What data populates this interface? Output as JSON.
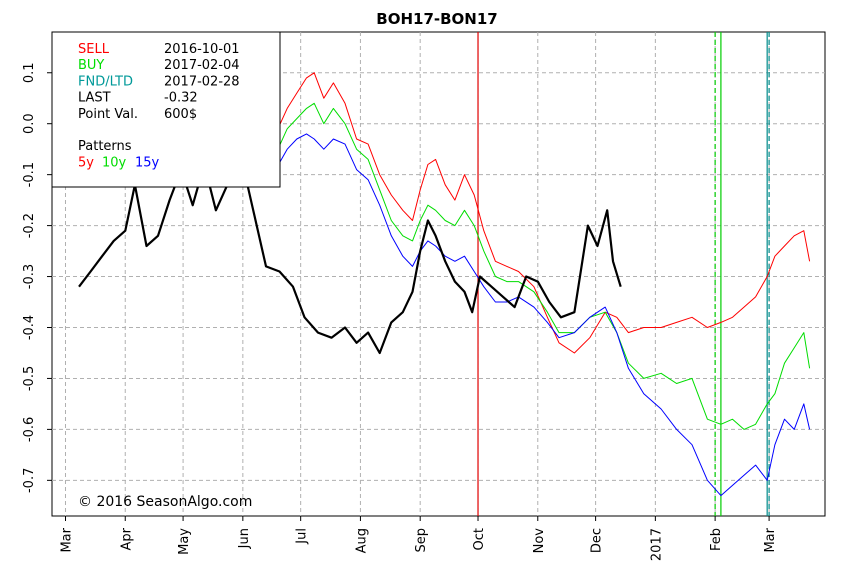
{
  "chart_data": {
    "type": "line",
    "title": "BOH17-BON17",
    "ylim": [
      -0.77,
      0.18
    ],
    "y_ticks": [
      -0.7,
      -0.6,
      -0.5,
      -0.4,
      -0.3,
      -0.2,
      -0.1,
      0.0,
      0.1
    ],
    "y_tick_labels": [
      "-0.7",
      "-0.6",
      "-0.5",
      "-0.4",
      "-0.3",
      "-0.2",
      "-0.1",
      "0.0",
      "0.1"
    ],
    "x_range": [
      "2016-02-23",
      "2017-03-30"
    ],
    "x_ticks": [
      {
        "label": "Mar",
        "date": "2016-03-01"
      },
      {
        "label": "Apr",
        "date": "2016-04-01"
      },
      {
        "label": "May",
        "date": "2016-05-01"
      },
      {
        "label": "Jun",
        "date": "2016-06-01"
      },
      {
        "label": "Jul",
        "date": "2016-07-01"
      },
      {
        "label": "Aug",
        "date": "2016-08-01"
      },
      {
        "label": "Sep",
        "date": "2016-09-01"
      },
      {
        "label": "Oct",
        "date": "2016-10-01"
      },
      {
        "label": "Nov",
        "date": "2016-11-01"
      },
      {
        "label": "Dec",
        "date": "2016-12-01"
      },
      {
        "label": "2017",
        "date": "2017-01-01"
      },
      {
        "label": "Feb",
        "date": "2017-02-01"
      },
      {
        "label": "Mar",
        "date": "2017-03-01"
      }
    ],
    "grid": true,
    "vlines": [
      {
        "date": "2016-10-01",
        "color": "#e00000",
        "style": "solid"
      },
      {
        "date": "2017-02-04",
        "color": "#00cc00",
        "style": "solid"
      },
      {
        "date": "2017-02-01",
        "color": "#00cc00",
        "style": "dashed"
      },
      {
        "date": "2017-02-28",
        "color": "#008b8b",
        "style": "solid"
      },
      {
        "date": "2017-03-01",
        "color": "#008b8b",
        "style": "dashed"
      }
    ],
    "series": [
      {
        "name": "5y",
        "color": "#ff0000",
        "width": 1,
        "points": [
          [
            "2016-06-10",
            -0.08
          ],
          [
            "2016-06-18",
            -0.02
          ],
          [
            "2016-06-24",
            0.03
          ],
          [
            "2016-06-29",
            0.06
          ],
          [
            "2016-07-04",
            0.09
          ],
          [
            "2016-07-08",
            0.1
          ],
          [
            "2016-07-13",
            0.05
          ],
          [
            "2016-07-18",
            0.08
          ],
          [
            "2016-07-24",
            0.04
          ],
          [
            "2016-07-30",
            -0.03
          ],
          [
            "2016-08-05",
            -0.04
          ],
          [
            "2016-08-11",
            -0.1
          ],
          [
            "2016-08-17",
            -0.14
          ],
          [
            "2016-08-23",
            -0.17
          ],
          [
            "2016-08-28",
            -0.19
          ],
          [
            "2016-09-01",
            -0.13
          ],
          [
            "2016-09-05",
            -0.08
          ],
          [
            "2016-09-09",
            -0.07
          ],
          [
            "2016-09-14",
            -0.12
          ],
          [
            "2016-09-19",
            -0.15
          ],
          [
            "2016-09-24",
            -0.1
          ],
          [
            "2016-09-29",
            -0.14
          ],
          [
            "2016-10-04",
            -0.21
          ],
          [
            "2016-10-10",
            -0.27
          ],
          [
            "2016-10-16",
            -0.28
          ],
          [
            "2016-10-22",
            -0.29
          ],
          [
            "2016-10-30",
            -0.32
          ],
          [
            "2016-11-06",
            -0.38
          ],
          [
            "2016-11-12",
            -0.43
          ],
          [
            "2016-11-20",
            -0.45
          ],
          [
            "2016-11-28",
            -0.42
          ],
          [
            "2016-12-06",
            -0.37
          ],
          [
            "2016-12-12",
            -0.38
          ],
          [
            "2016-12-18",
            -0.41
          ],
          [
            "2016-12-26",
            -0.4
          ],
          [
            "2017-01-04",
            -0.4
          ],
          [
            "2017-01-12",
            -0.39
          ],
          [
            "2017-01-20",
            -0.38
          ],
          [
            "2017-01-28",
            -0.4
          ],
          [
            "2017-02-04",
            -0.39
          ],
          [
            "2017-02-10",
            -0.38
          ],
          [
            "2017-02-16",
            -0.36
          ],
          [
            "2017-02-22",
            -0.34
          ],
          [
            "2017-02-28",
            -0.3
          ],
          [
            "2017-03-04",
            -0.26
          ],
          [
            "2017-03-09",
            -0.24
          ],
          [
            "2017-03-14",
            -0.22
          ],
          [
            "2017-03-19",
            -0.21
          ],
          [
            "2017-03-22",
            -0.27
          ]
        ]
      },
      {
        "name": "10y",
        "color": "#00dd00",
        "width": 1,
        "points": [
          [
            "2016-06-10",
            -0.1
          ],
          [
            "2016-06-18",
            -0.06
          ],
          [
            "2016-06-24",
            -0.01
          ],
          [
            "2016-06-29",
            0.01
          ],
          [
            "2016-07-04",
            0.03
          ],
          [
            "2016-07-08",
            0.04
          ],
          [
            "2016-07-13",
            0.0
          ],
          [
            "2016-07-18",
            0.03
          ],
          [
            "2016-07-24",
            0.0
          ],
          [
            "2016-07-30",
            -0.05
          ],
          [
            "2016-08-05",
            -0.07
          ],
          [
            "2016-08-11",
            -0.13
          ],
          [
            "2016-08-17",
            -0.19
          ],
          [
            "2016-08-23",
            -0.22
          ],
          [
            "2016-08-28",
            -0.23
          ],
          [
            "2016-09-01",
            -0.19
          ],
          [
            "2016-09-05",
            -0.16
          ],
          [
            "2016-09-09",
            -0.17
          ],
          [
            "2016-09-14",
            -0.19
          ],
          [
            "2016-09-19",
            -0.2
          ],
          [
            "2016-09-24",
            -0.17
          ],
          [
            "2016-09-29",
            -0.2
          ],
          [
            "2016-10-04",
            -0.25
          ],
          [
            "2016-10-10",
            -0.3
          ],
          [
            "2016-10-16",
            -0.31
          ],
          [
            "2016-10-22",
            -0.31
          ],
          [
            "2016-10-30",
            -0.33
          ],
          [
            "2016-11-06",
            -0.37
          ],
          [
            "2016-11-12",
            -0.41
          ],
          [
            "2016-11-20",
            -0.41
          ],
          [
            "2016-11-28",
            -0.38
          ],
          [
            "2016-12-06",
            -0.37
          ],
          [
            "2016-12-12",
            -0.41
          ],
          [
            "2016-12-18",
            -0.47
          ],
          [
            "2016-12-26",
            -0.5
          ],
          [
            "2017-01-04",
            -0.49
          ],
          [
            "2017-01-12",
            -0.51
          ],
          [
            "2017-01-20",
            -0.5
          ],
          [
            "2017-01-28",
            -0.58
          ],
          [
            "2017-02-04",
            -0.59
          ],
          [
            "2017-02-10",
            -0.58
          ],
          [
            "2017-02-16",
            -0.6
          ],
          [
            "2017-02-22",
            -0.59
          ],
          [
            "2017-02-28",
            -0.55
          ],
          [
            "2017-03-04",
            -0.53
          ],
          [
            "2017-03-09",
            -0.47
          ],
          [
            "2017-03-14",
            -0.44
          ],
          [
            "2017-03-19",
            -0.41
          ],
          [
            "2017-03-22",
            -0.48
          ]
        ]
      },
      {
        "name": "15y",
        "color": "#0000ff",
        "width": 1,
        "points": [
          [
            "2016-06-10",
            -0.12
          ],
          [
            "2016-06-18",
            -0.09
          ],
          [
            "2016-06-24",
            -0.05
          ],
          [
            "2016-06-29",
            -0.03
          ],
          [
            "2016-07-04",
            -0.02
          ],
          [
            "2016-07-08",
            -0.03
          ],
          [
            "2016-07-13",
            -0.05
          ],
          [
            "2016-07-18",
            -0.03
          ],
          [
            "2016-07-24",
            -0.04
          ],
          [
            "2016-07-30",
            -0.09
          ],
          [
            "2016-08-05",
            -0.11
          ],
          [
            "2016-08-11",
            -0.16
          ],
          [
            "2016-08-17",
            -0.22
          ],
          [
            "2016-08-23",
            -0.26
          ],
          [
            "2016-08-28",
            -0.28
          ],
          [
            "2016-09-01",
            -0.25
          ],
          [
            "2016-09-05",
            -0.23
          ],
          [
            "2016-09-09",
            -0.24
          ],
          [
            "2016-09-14",
            -0.26
          ],
          [
            "2016-09-19",
            -0.27
          ],
          [
            "2016-09-24",
            -0.26
          ],
          [
            "2016-09-29",
            -0.29
          ],
          [
            "2016-10-04",
            -0.32
          ],
          [
            "2016-10-10",
            -0.35
          ],
          [
            "2016-10-16",
            -0.35
          ],
          [
            "2016-10-22",
            -0.34
          ],
          [
            "2016-10-30",
            -0.36
          ],
          [
            "2016-11-06",
            -0.39
          ],
          [
            "2016-11-12",
            -0.42
          ],
          [
            "2016-11-20",
            -0.41
          ],
          [
            "2016-11-28",
            -0.38
          ],
          [
            "2016-12-06",
            -0.36
          ],
          [
            "2016-12-12",
            -0.41
          ],
          [
            "2016-12-18",
            -0.48
          ],
          [
            "2016-12-26",
            -0.53
          ],
          [
            "2017-01-04",
            -0.56
          ],
          [
            "2017-01-12",
            -0.6
          ],
          [
            "2017-01-20",
            -0.63
          ],
          [
            "2017-01-28",
            -0.7
          ],
          [
            "2017-02-04",
            -0.73
          ],
          [
            "2017-02-10",
            -0.71
          ],
          [
            "2017-02-16",
            -0.69
          ],
          [
            "2017-02-22",
            -0.67
          ],
          [
            "2017-02-28",
            -0.7
          ],
          [
            "2017-03-04",
            -0.63
          ],
          [
            "2017-03-09",
            -0.58
          ],
          [
            "2017-03-14",
            -0.6
          ],
          [
            "2017-03-19",
            -0.55
          ],
          [
            "2017-03-22",
            -0.6
          ]
        ]
      },
      {
        "name": "",
        "color": "#000000",
        "width": 2.2,
        "points": [
          [
            "2016-03-08",
            -0.32
          ],
          [
            "2016-03-14",
            -0.29
          ],
          [
            "2016-03-20",
            -0.26
          ],
          [
            "2016-03-26",
            -0.23
          ],
          [
            "2016-04-01",
            -0.21
          ],
          [
            "2016-04-06",
            -0.12
          ],
          [
            "2016-04-12",
            -0.24
          ],
          [
            "2016-04-18",
            -0.22
          ],
          [
            "2016-04-24",
            -0.15
          ],
          [
            "2016-04-30",
            -0.09
          ],
          [
            "2016-05-06",
            -0.16
          ],
          [
            "2016-05-12",
            -0.08
          ],
          [
            "2016-05-18",
            -0.17
          ],
          [
            "2016-05-24",
            -0.12
          ],
          [
            "2016-06-01",
            -0.08
          ],
          [
            "2016-06-07",
            -0.18
          ],
          [
            "2016-06-13",
            -0.28
          ],
          [
            "2016-06-20",
            -0.29
          ],
          [
            "2016-06-27",
            -0.32
          ],
          [
            "2016-07-03",
            -0.38
          ],
          [
            "2016-07-10",
            -0.41
          ],
          [
            "2016-07-17",
            -0.42
          ],
          [
            "2016-07-24",
            -0.4
          ],
          [
            "2016-07-30",
            -0.43
          ],
          [
            "2016-08-05",
            -0.41
          ],
          [
            "2016-08-11",
            -0.45
          ],
          [
            "2016-08-17",
            -0.39
          ],
          [
            "2016-08-23",
            -0.37
          ],
          [
            "2016-08-28",
            -0.33
          ],
          [
            "2016-09-01",
            -0.25
          ],
          [
            "2016-09-05",
            -0.19
          ],
          [
            "2016-09-09",
            -0.22
          ],
          [
            "2016-09-14",
            -0.27
          ],
          [
            "2016-09-19",
            -0.31
          ],
          [
            "2016-09-24",
            -0.33
          ],
          [
            "2016-09-28",
            -0.37
          ],
          [
            "2016-10-02",
            -0.3
          ],
          [
            "2016-10-08",
            -0.32
          ],
          [
            "2016-10-14",
            -0.34
          ],
          [
            "2016-10-20",
            -0.36
          ],
          [
            "2016-10-26",
            -0.3
          ],
          [
            "2016-11-01",
            -0.31
          ],
          [
            "2016-11-07",
            -0.35
          ],
          [
            "2016-11-13",
            -0.38
          ],
          [
            "2016-11-20",
            -0.37
          ],
          [
            "2016-11-27",
            -0.2
          ],
          [
            "2016-12-02",
            -0.24
          ],
          [
            "2016-12-07",
            -0.17
          ],
          [
            "2016-12-10",
            -0.27
          ],
          [
            "2016-12-14",
            -0.32
          ]
        ]
      }
    ],
    "legend": {
      "placement": "top-left",
      "rows": [
        {
          "label": "SELL",
          "value": "2016-10-01",
          "color": "#ff0000"
        },
        {
          "label": "BUY",
          "value": "2017-02-04",
          "color": "#00dd00"
        },
        {
          "label": "FND/LTD",
          "value": "2017-02-28",
          "color": "#009999"
        },
        {
          "label": "LAST",
          "value": "-0.32",
          "color": "#000000"
        },
        {
          "label": "Point Val.",
          "value": "600$",
          "color": "#000000"
        }
      ],
      "patterns_label": "Patterns",
      "patterns": [
        {
          "label": "5y",
          "color": "#ff0000"
        },
        {
          "label": "10y",
          "color": "#00dd00"
        },
        {
          "label": "15y",
          "color": "#0000ff"
        }
      ]
    },
    "annotation": "© 2016 SeasonAlgo.com"
  }
}
